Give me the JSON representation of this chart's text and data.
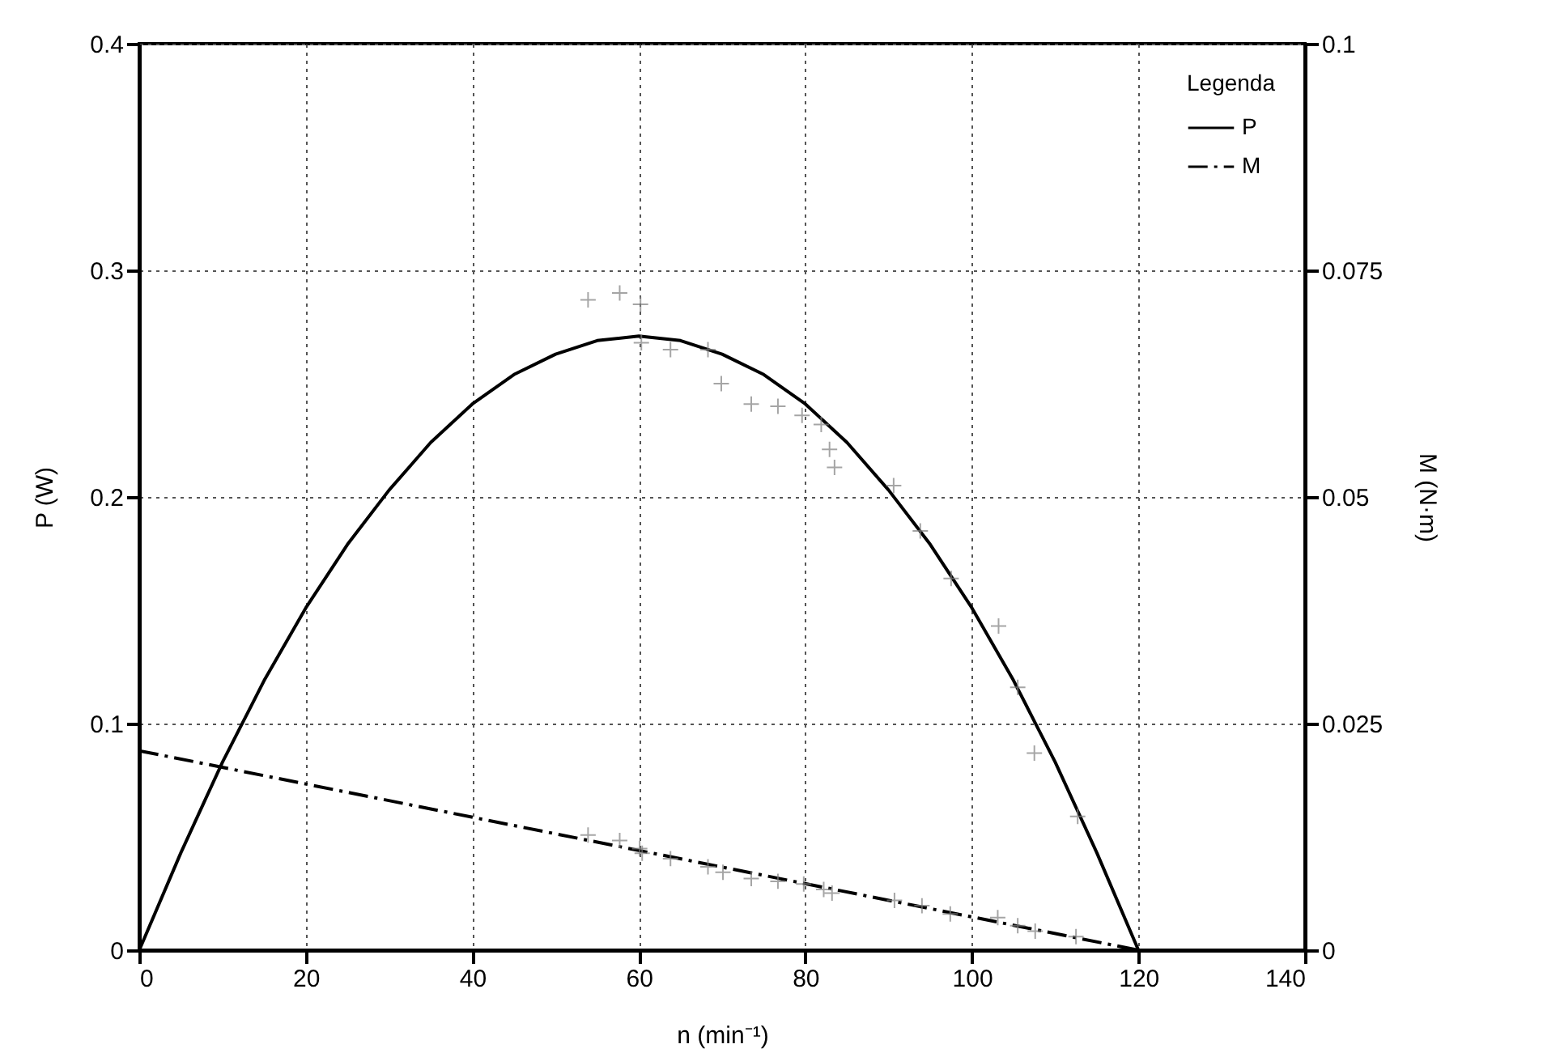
{
  "chart_data": {
    "type": "line",
    "xlabel": "n (min⁻¹)",
    "ylabel": "P (W)",
    "y2label": "M (N·m)",
    "legend_title": "Legenda",
    "legend": "top right",
    "grid": true,
    "xlim": [
      0,
      140
    ],
    "xticks": [
      0,
      20,
      40,
      60,
      80,
      100,
      120,
      140
    ],
    "ylim": [
      0,
      0.4
    ],
    "yticks": [
      0,
      0.1,
      0.2,
      0.3,
      0.4
    ],
    "y2lim": [
      0,
      0.1
    ],
    "y2ticks": [
      0,
      0.025,
      0.05,
      0.075,
      0.1
    ],
    "series": [
      {
        "name": "P",
        "color": "#000000",
        "line_style": "solid",
        "x": [
          0,
          5,
          10,
          15,
          20,
          25,
          30,
          35,
          40,
          45,
          50,
          55,
          60,
          65,
          70,
          75,
          80,
          85,
          90,
          95,
          100,
          105,
          110,
          115,
          120
        ],
        "values": [
          0,
          0.043,
          0.083,
          0.119,
          0.151,
          0.179,
          0.203,
          0.224,
          0.241,
          0.254,
          0.263,
          0.269,
          0.271,
          0.269,
          0.263,
          0.254,
          0.241,
          0.224,
          0.203,
          0.179,
          0.151,
          0.119,
          0.083,
          0.043,
          0
        ]
      },
      {
        "name": "M",
        "axis": "y2",
        "color": "#000000",
        "line_style": "dashdot",
        "x": [
          0,
          120
        ],
        "values": [
          0.022,
          0
        ]
      },
      {
        "type": "scatter",
        "color": "#808080",
        "marker": "cross",
        "x": [
          53.9,
          57.7,
          60.2,
          60.3,
          63.8,
          68.3,
          69.9,
          73.5,
          76.7,
          79.6,
          81.9,
          82.9,
          83.5,
          90.6,
          93.8,
          97.5,
          103.2,
          105.5,
          107.5,
          112.7
        ],
        "values": [
          0.287,
          0.29,
          0.285,
          0.268,
          0.265,
          0.265,
          0.25,
          0.241,
          0.24,
          0.236,
          0.232,
          0.221,
          0.213,
          0.205,
          0.185,
          0.164,
          0.143,
          0.116,
          0.087,
          0.059
        ]
      },
      {
        "type": "scatter",
        "axis": "y2",
        "color": "#808080",
        "marker": "cross",
        "x": [
          53.9,
          57.7,
          60.1,
          60.4,
          63.8,
          68.3,
          70.1,
          73.5,
          76.7,
          79.8,
          82.2,
          83.2,
          90.7,
          94,
          97.4,
          103.1,
          105.5,
          107.6,
          112.5
        ],
        "values": [
          0.0127,
          0.0121,
          0.0112,
          0.0107,
          0.0101,
          0.0092,
          0.0086,
          0.0079,
          0.0076,
          0.0073,
          0.0067,
          0.0063,
          0.0055,
          0.0049,
          0.004,
          0.0036,
          0.0027,
          0.0021,
          0.0015
        ]
      }
    ]
  }
}
